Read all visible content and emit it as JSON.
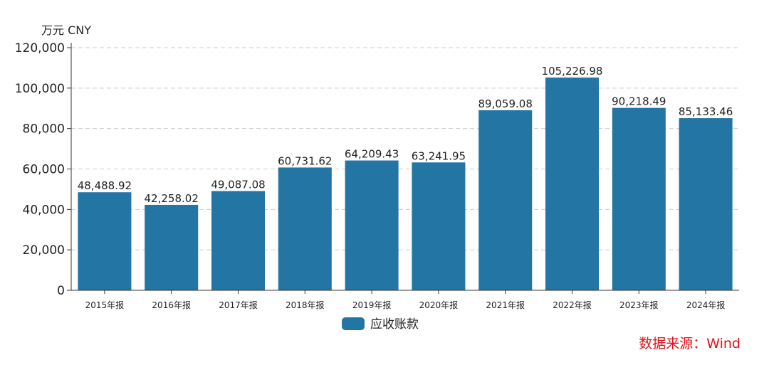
{
  "chart_data": {
    "type": "bar",
    "unit_label": "万元  CNY",
    "categories": [
      "2015年报",
      "2016年报",
      "2017年报",
      "2018年报",
      "2019年报",
      "2020年报",
      "2021年报",
      "2022年报",
      "2023年报",
      "2024年报"
    ],
    "series": [
      {
        "name": "应收账款",
        "values": [
          48488.92,
          42258.02,
          49087.08,
          60731.62,
          64209.43,
          63241.95,
          89059.08,
          105226.98,
          90218.49,
          85133.46
        ],
        "data_labels": [
          "48,488.92",
          "42,258.02",
          "49,087.08",
          "60,731.62",
          "64,209.43",
          "63,241.95",
          "89,059.08",
          "105,226.98",
          "90,218.49",
          "85,133.46"
        ],
        "color": "#2376a4"
      }
    ],
    "ylim": [
      0,
      120000
    ],
    "yticks": [
      0,
      20000,
      40000,
      60000,
      80000,
      100000,
      120000
    ],
    "ytick_labels": [
      "0",
      "20,000",
      "40,000",
      "60,000",
      "80,000",
      "100,000",
      "120,000"
    ],
    "grid": true,
    "legend_position": "bottom-center",
    "source": "数据来源：Wind",
    "source_color": "#e0101a"
  }
}
